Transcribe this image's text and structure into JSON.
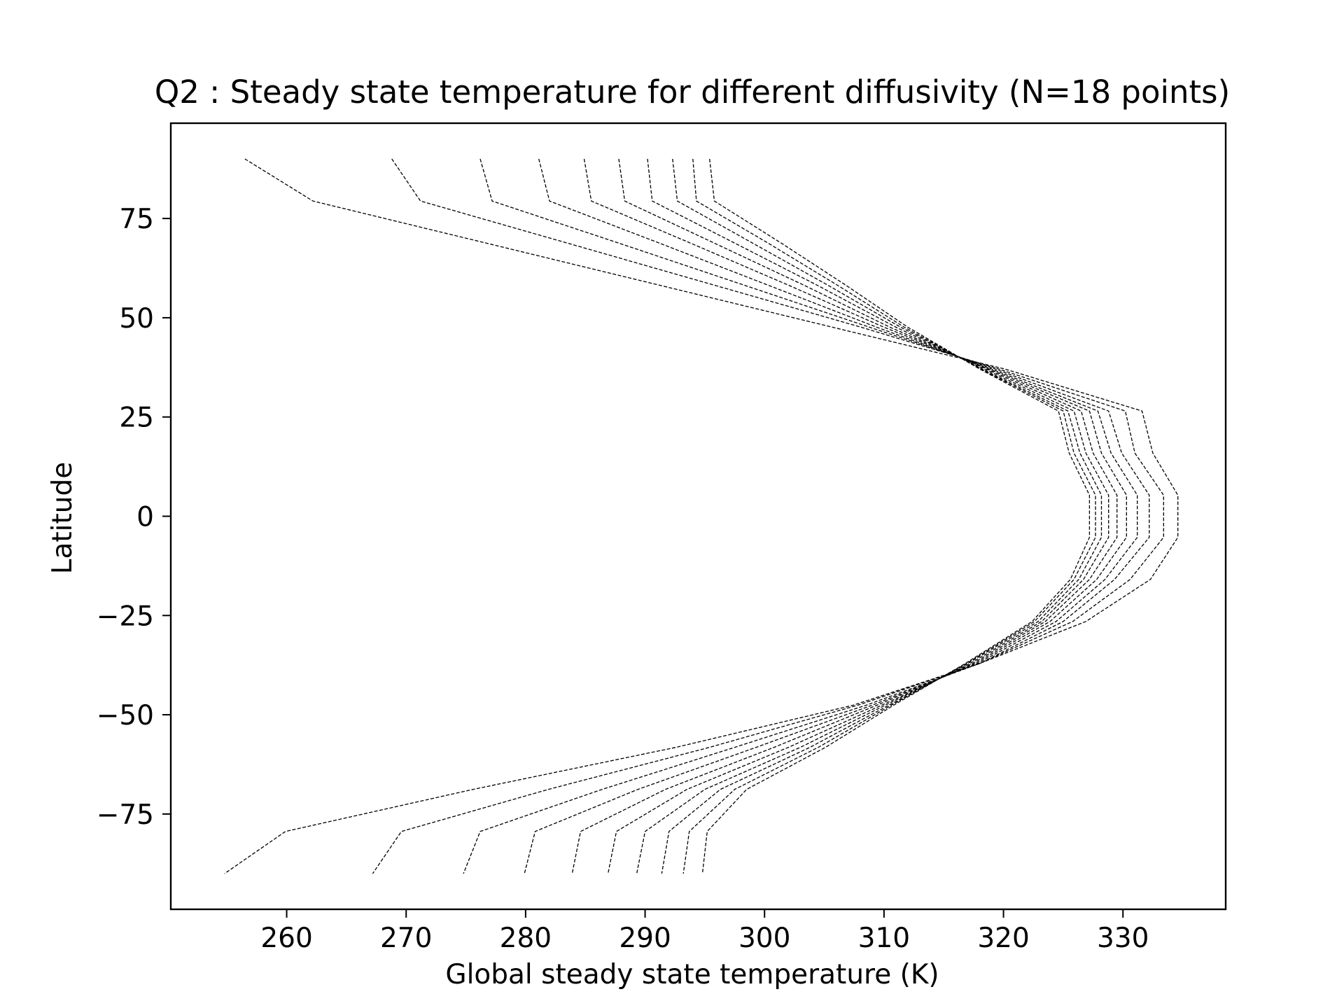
{
  "chart_data": {
    "type": "line",
    "title": "Q2 : Steady state temperature for different diffusivity (N=18 points)",
    "xlabel": "Global steady state temperature (K)",
    "ylabel": "Latitude",
    "xlim": [
      250.3,
      338.6
    ],
    "ylim": [
      -99,
      99
    ],
    "xticks": [
      260,
      270,
      280,
      290,
      300,
      310,
      320,
      330
    ],
    "yticks": [
      75,
      50,
      25,
      0,
      -25,
      -50,
      -75
    ],
    "xtick_labels": [
      "260",
      "270",
      "280",
      "290",
      "300",
      "310",
      "320",
      "330"
    ],
    "ytick_labels": [
      "75",
      "50",
      "25",
      "0",
      "−25",
      "−50",
      "−75"
    ],
    "grid": false,
    "legend": "none",
    "line_style": "dashed",
    "line_color": "#000000",
    "latitudes": [
      90,
      79.4,
      68.8,
      58.2,
      47.6,
      37.1,
      26.5,
      15.9,
      5.3,
      -5.3,
      -15.9,
      -26.5,
      -37.1,
      -47.6,
      -58.2,
      -68.8,
      -79.4,
      -90
    ],
    "series": [
      {
        "values": [
          256.5,
          262.2,
          276.7,
          291.2,
          305.7,
          320.1,
          331.6,
          332.5,
          334.6,
          334.6,
          332.3,
          326.9,
          318.0,
          307.4,
          292.6,
          275.6,
          259.9,
          254.8
        ]
      },
      {
        "values": [
          268.8,
          271.2,
          283.5,
          295.8,
          308.1,
          319.6,
          330.2,
          331.0,
          333.4,
          333.4,
          330.6,
          325.8,
          318.0,
          307.8,
          295.4,
          281.9,
          269.6,
          267.2
        ]
      },
      {
        "values": [
          276.2,
          277.2,
          287.8,
          298.3,
          308.8,
          319.3,
          328.8,
          329.9,
          332.2,
          332.2,
          329.3,
          325.0,
          318.0,
          308.5,
          297.5,
          286.4,
          276.2,
          274.8
        ]
      },
      {
        "values": [
          281.1,
          282.0,
          291.2,
          300.3,
          309.4,
          319.0,
          327.9,
          329.0,
          331.2,
          331.2,
          328.5,
          324.4,
          317.8,
          309.0,
          299.3,
          289.4,
          280.8,
          279.9
        ]
      },
      {
        "values": [
          284.9,
          285.5,
          293.8,
          302.0,
          310.0,
          318.8,
          327.2,
          328.2,
          330.3,
          330.3,
          327.8,
          323.9,
          317.6,
          309.4,
          300.8,
          291.7,
          284.6,
          283.9
        ]
      },
      {
        "values": [
          287.8,
          288.3,
          295.8,
          303.3,
          310.5,
          318.6,
          326.5,
          327.5,
          329.5,
          329.5,
          327.2,
          323.5,
          317.4,
          309.8,
          302.0,
          293.5,
          287.6,
          286.9
        ]
      },
      {
        "values": [
          290.2,
          290.6,
          297.5,
          304.4,
          311.0,
          318.4,
          325.9,
          326.9,
          328.8,
          328.8,
          326.7,
          323.2,
          317.2,
          310.1,
          303.0,
          295.0,
          290.0,
          289.3
        ]
      },
      {
        "values": [
          292.3,
          292.7,
          299.0,
          305.3,
          311.4,
          318.2,
          325.4,
          326.4,
          328.2,
          328.2,
          326.3,
          322.9,
          317.0,
          310.4,
          303.8,
          296.3,
          292.0,
          291.4
        ]
      },
      {
        "values": [
          294.0,
          294.3,
          300.3,
          306.1,
          311.7,
          318.1,
          325.0,
          325.9,
          327.7,
          327.7,
          325.9,
          322.6,
          316.9,
          310.6,
          304.5,
          297.5,
          293.7,
          293.2
        ]
      },
      {
        "values": [
          295.4,
          295.8,
          301.4,
          306.8,
          312.0,
          318.0,
          324.6,
          325.5,
          327.2,
          327.2,
          325.6,
          322.4,
          316.8,
          310.8,
          305.1,
          298.5,
          295.2,
          294.8
        ]
      }
    ]
  }
}
